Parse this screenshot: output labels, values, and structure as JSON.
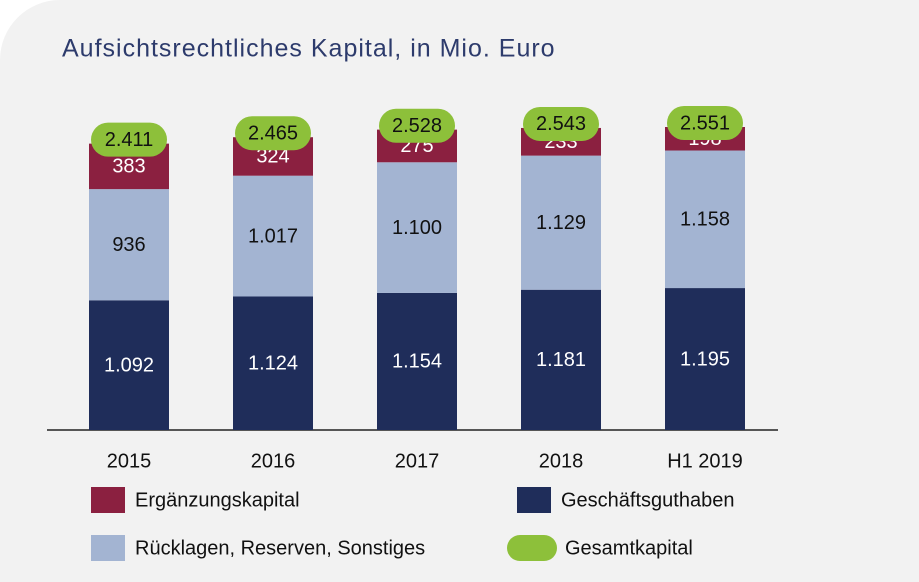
{
  "chart_data": {
    "type": "stacked_bar",
    "title": "Aufsichtsrechtliches Kapital, in Mio. Euro",
    "categories": [
      "2015",
      "2016",
      "2017",
      "2018",
      "H1 2019"
    ],
    "series": [
      {
        "name": "Geschäftsguthaben",
        "color": "#1f2d5a",
        "values": [
          1092,
          1124,
          1154,
          1181,
          1195
        ],
        "value_labels": [
          "1.092",
          "1.124",
          "1.154",
          "1.181",
          "1.195"
        ]
      },
      {
        "name": "Rücklagen, Reserven, Sonstiges",
        "color": "#a3b4d2",
        "values": [
          936,
          1017,
          1100,
          1129,
          1158
        ],
        "value_labels": [
          "936",
          "1.017",
          "1.100",
          "1.129",
          "1.158"
        ]
      },
      {
        "name": "Ergänzungskapital",
        "color": "#8b2040",
        "values": [
          383,
          324,
          275,
          233,
          198
        ],
        "value_labels": [
          "383",
          "324",
          "275",
          "233",
          "198"
        ]
      },
      {
        "name": "Gesamtkapital",
        "color": "#8dc03a",
        "values": [
          2411,
          2465,
          2528,
          2543,
          2551
        ],
        "value_labels": [
          "2.411",
          "2.465",
          "2.528",
          "2.543",
          "2.551"
        ]
      }
    ]
  }
}
